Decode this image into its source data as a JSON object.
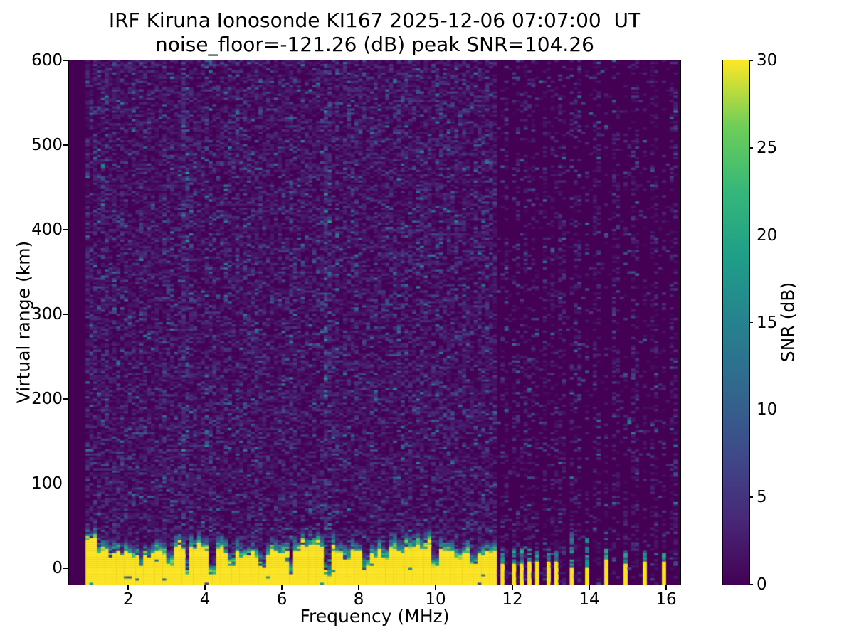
{
  "chart_data": {
    "type": "heatmap",
    "title": "IRF Kiruna Ionosonde KI167 2025-12-06 07:07:00  UT",
    "subtitle": "noise_floor=-121.26 (dB) peak SNR=104.26",
    "xlabel": "Frequency (MHz)",
    "ylabel": "Virtual range (km)",
    "colorbar_label": "SNR (dB)",
    "xlim": [
      0.46,
      16.37
    ],
    "ylim": [
      -19,
      600
    ],
    "clim": [
      0,
      30
    ],
    "xticks": [
      2,
      4,
      6,
      8,
      10,
      12,
      14,
      16
    ],
    "yticks": [
      0,
      100,
      200,
      300,
      400,
      500,
      600
    ],
    "cticks": [
      0,
      5,
      10,
      15,
      20,
      25,
      30
    ],
    "grid": false,
    "background_color": "#ffffff",
    "text_color": "#000000",
    "spine_color": "#000000",
    "colormap": {
      "name": "viridis",
      "stops": [
        [
          0.0,
          "#440154"
        ],
        [
          0.125,
          "#482878"
        ],
        [
          0.25,
          "#3e4a89"
        ],
        [
          0.375,
          "#31688e"
        ],
        [
          0.5,
          "#26828e"
        ],
        [
          0.625,
          "#1f9e89"
        ],
        [
          0.75,
          "#35b779"
        ],
        [
          0.875,
          "#6ece58"
        ],
        [
          1.0,
          "#fde725"
        ]
      ]
    },
    "render": {
      "seed": 11,
      "grid_cell": {
        "df_mhz": 0.1,
        "dkm": 2.5
      },
      "data_f_start": 0.89,
      "data_f_end": 16.32,
      "noise": {
        "dense_density": 1.0,
        "active_column_density": 0.52,
        "quiet_column_density": 0.07,
        "bright_columns": [
          3.5,
          7.2
        ]
      },
      "ground_band": {
        "f_end": 11.57,
        "top_km_mean": 21,
        "top_km_wave": 5,
        "top_km_jitter": 9,
        "start_hump_f": 1.2,
        "start_hump_extra_km": 8,
        "fade_km": 17,
        "snr": 30
      },
      "notches": {
        "deep": [
          3.55,
          4.2,
          6.25,
          7.2
        ],
        "medium": [
          2.33,
          3.07,
          4.7,
          5.5,
          8.2,
          9.97,
          11.0
        ],
        "shallow": [
          1.55,
          5.0,
          7.7,
          8.7,
          10.6
        ],
        "half_width_mhz": 0.085
      },
      "stripes": {
        "cluster": [
          11.75,
          12.0,
          12.25,
          12.45,
          12.68,
          12.9,
          13.1
        ],
        "weak": [
          13.5,
          13.95
        ],
        "sparse": [
          14.45,
          14.95,
          15.45,
          15.97
        ],
        "half_width_mhz": 0.055
      },
      "extra_noise_columns": [
        11.85,
        12.12,
        12.36,
        12.56,
        12.8,
        13.0,
        13.22,
        13.35,
        13.62,
        13.78,
        14.1,
        14.25,
        14.6,
        14.75,
        15.1,
        15.25,
        15.6,
        15.75,
        16.1,
        16.25
      ]
    }
  }
}
